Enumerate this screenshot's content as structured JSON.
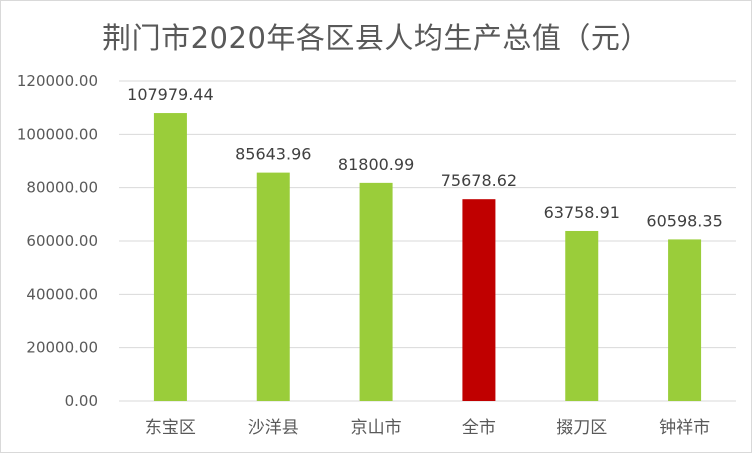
{
  "chart_data": {
    "type": "bar",
    "title": "荆门市2020年各区县人均生产总值（元）",
    "categories": [
      "东宝区",
      "沙洋县",
      "京山市",
      "全市",
      "掇刀区",
      "钟祥市"
    ],
    "values": [
      107979.44,
      85643.96,
      81800.99,
      75678.62,
      63758.91,
      60598.35
    ],
    "data_labels": [
      "107979.44",
      "85643.96",
      "81800.99",
      "75678.62",
      "63758.91",
      "60598.35"
    ],
    "ylim": [
      0,
      120000
    ],
    "yticks": [
      "0.00",
      "20000.00",
      "40000.00",
      "60000.00",
      "80000.00",
      "100000.00",
      "120000.00"
    ],
    "grid": true,
    "legend": "none",
    "colors": {
      "default_bar": "#9acd3a",
      "highlight_bar": "#c00000",
      "highlight_category": "全市",
      "gridline": "#d9d9d9",
      "text": "#595959"
    }
  }
}
